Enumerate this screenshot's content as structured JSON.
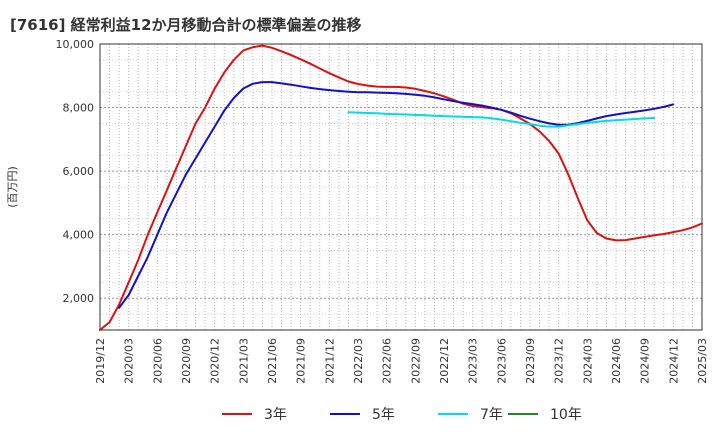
{
  "chart_data": {
    "type": "line",
    "title": "[7616]  経常利益12か月移動合計の標準偏差の推移",
    "ylabel": "(百万円)",
    "xlabel": "",
    "ylim": [
      1000,
      10000
    ],
    "y_ticks": [
      2000,
      4000,
      6000,
      8000,
      10000
    ],
    "y_tick_labels": [
      "2,000",
      "4,000",
      "6,000",
      "8,000",
      "10,000"
    ],
    "x_tick_labels": [
      "2019/12",
      "2020/03",
      "2020/06",
      "2020/09",
      "2020/12",
      "2021/03",
      "2021/06",
      "2021/09",
      "2021/12",
      "2022/03",
      "2022/06",
      "2022/09",
      "2022/12",
      "2023/03",
      "2023/06",
      "2023/09",
      "2023/12",
      "2024/03",
      "2024/06",
      "2024/09",
      "2024/12",
      "2025/03"
    ],
    "grid": true,
    "legend_position": "bottom",
    "series": [
      {
        "name": "3年",
        "color": "#dd1111",
        "start": "2019/12",
        "values": [
          1000,
          1250,
          1800,
          2500,
          3200,
          4000,
          4700,
          5400,
          6100,
          6800,
          7500,
          8000,
          8600,
          9100,
          9500,
          9800,
          9900,
          9950,
          9880,
          9770,
          9650,
          9520,
          9380,
          9230,
          9080,
          8950,
          8820,
          8740,
          8690,
          8660,
          8650,
          8650,
          8630,
          8590,
          8520,
          8450,
          8350,
          8240,
          8120,
          8050,
          8010,
          7980,
          7930,
          7820,
          7660,
          7480,
          7250,
          6950,
          6550,
          5900,
          5150,
          4450,
          4050,
          3880,
          3820,
          3830,
          3880,
          3930,
          3980,
          4020,
          4080,
          4140,
          4230,
          4350
        ]
      },
      {
        "name": "5年",
        "color": "#1111cc",
        "start": "2020/02",
        "values": [
          1700,
          2100,
          2700,
          3300,
          4000,
          4700,
          5300,
          5900,
          6400,
          6900,
          7400,
          7900,
          8300,
          8600,
          8750,
          8800,
          8800,
          8760,
          8720,
          8670,
          8620,
          8580,
          8550,
          8520,
          8500,
          8480,
          8480,
          8470,
          8460,
          8450,
          8430,
          8400,
          8370,
          8320,
          8260,
          8200,
          8150,
          8110,
          8060,
          8000,
          7930,
          7840,
          7740,
          7650,
          7570,
          7500,
          7460,
          7460,
          7510,
          7580,
          7660,
          7730,
          7780,
          7830,
          7870,
          7910,
          7960,
          8020,
          8100
        ]
      },
      {
        "name": "7年",
        "color": "#00dddd",
        "start": "2022/02",
        "values": [
          7850,
          7840,
          7830,
          7820,
          7800,
          7790,
          7780,
          7770,
          7760,
          7740,
          7730,
          7720,
          7710,
          7700,
          7690,
          7660,
          7620,
          7570,
          7520,
          7480,
          7430,
          7400,
          7400,
          7440,
          7480,
          7520,
          7550,
          7580,
          7600,
          7620,
          7640,
          7660,
          7670
        ]
      },
      {
        "name": "10年",
        "color": "#228822",
        "start": "2024/12",
        "values": []
      }
    ]
  }
}
